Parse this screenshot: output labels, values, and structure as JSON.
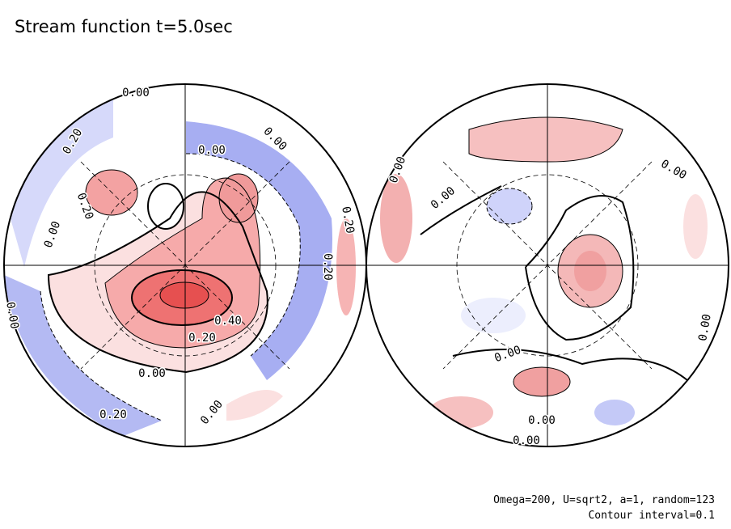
{
  "title": "Stream function t=5.0sec",
  "footnote": [
    "Omega=200, U=sqrt2, a=1, random=123",
    "Contour interval=0.1"
  ],
  "contour_labels": [
    "0.00",
    "0.20",
    "0.00",
    "0.00",
    "0.20",
    "0.00",
    "0.20",
    "0.20",
    "0.00",
    "0.40",
    "0.20",
    "0.00",
    "0.20",
    "0.00",
    "0.00",
    "0.00",
    "0.00",
    "0.00",
    "0.00",
    "0.00",
    "0.00"
  ]
}
